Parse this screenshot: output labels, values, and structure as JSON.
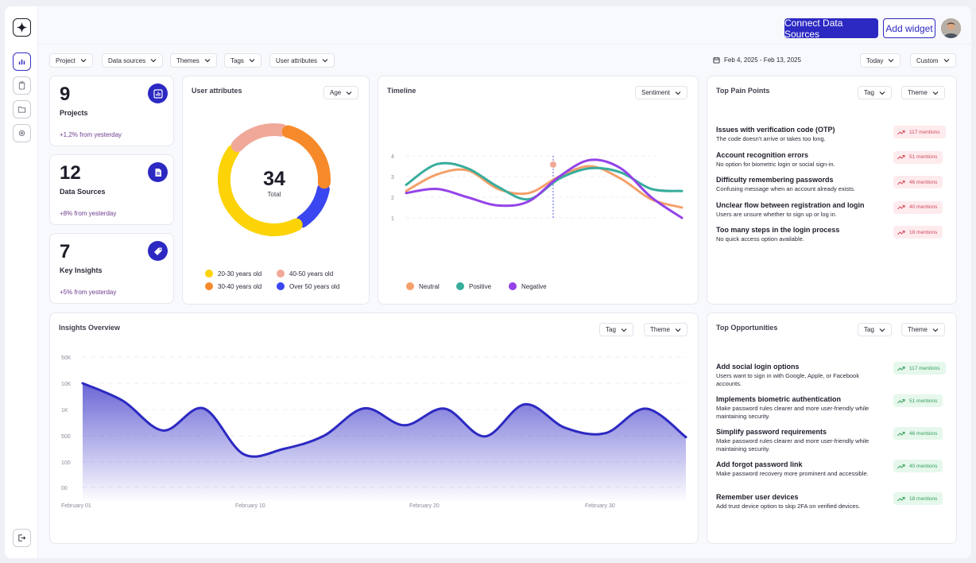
{
  "topbar": {
    "connect_label": "Connect Data Sources",
    "add_widget_label": "Add widget"
  },
  "filters": [
    {
      "label": "Project"
    },
    {
      "label": "Data sources"
    },
    {
      "label": "Themes"
    },
    {
      "label": "Tags"
    },
    {
      "label": "User attributes"
    }
  ],
  "date_range": {
    "label": "Feb 4, 2025 - Feb 13, 2025",
    "today_label": "Today",
    "custom_label": "Custom"
  },
  "stats": [
    {
      "value": "9",
      "label": "Projects",
      "change": "+1,2% from yesterday",
      "icon": "chart-icon"
    },
    {
      "value": "12",
      "label": "Data Sources",
      "change": "+8% from yesterday",
      "icon": "document-icon"
    },
    {
      "value": "7",
      "label": "Key Insights",
      "change": "+5% from yesterday",
      "icon": "tag-icon"
    }
  ],
  "user_attributes": {
    "title": "User attributes",
    "dropdown": "Age",
    "total_value": "34",
    "total_label": "Total",
    "legend": [
      {
        "label": "20-30 years old",
        "color": "#fcd307"
      },
      {
        "label": "40-50 years old",
        "color": "#f0a998"
      },
      {
        "label": "30-40 years old",
        "color": "#f68a2a"
      },
      {
        "label": "Over 50 years old",
        "color": "#3a46ef"
      }
    ]
  },
  "timeline": {
    "title": "Timeline",
    "dropdown": "Sentiment",
    "y_ticks": [
      "4",
      "3",
      "2",
      "1"
    ],
    "legend": [
      {
        "label": "Neutral",
        "color": "#f4a06a"
      },
      {
        "label": "Positive",
        "color": "#38ad9c"
      },
      {
        "label": "Negative",
        "color": "#9343e8"
      }
    ]
  },
  "pain_points": {
    "title": "Top Pain Points",
    "tag_label": "Tag",
    "theme_label": "Theme",
    "items": [
      {
        "title": "Issues with verification code (OTP)",
        "desc": "The code doesn't arrive or takes too long.",
        "mentions": "117 mentions"
      },
      {
        "title": "Account recognition errors",
        "desc": "No option for biometric login or social sign-in.",
        "mentions": "51 mentions"
      },
      {
        "title": "Difficulty remembering passwords",
        "desc": "Confusing message when an account already exists.",
        "mentions": "46 mentions"
      },
      {
        "title": "Unclear flow between registration and login",
        "desc": "Users are unsure whether to sign up or log in.",
        "mentions": "40 mentions"
      },
      {
        "title": "Too many steps in the login process",
        "desc": "No quick access option available.",
        "mentions": "18 mentions"
      }
    ]
  },
  "insights": {
    "title": "Insights Overview",
    "tag_label": "Tag",
    "theme_label": "Theme"
  },
  "opportunities": {
    "title": "Top Opportunities",
    "tag_label": "Tag",
    "theme_label": "Theme",
    "items": [
      {
        "title": "Add social login options",
        "desc": "Users want to sign in with Google, Apple, or Facebook accounts.",
        "mentions": "117 mentions"
      },
      {
        "title": "Implements biometric authentication",
        "desc": "Make password rules clearer and more user-friendly while maintaining security.",
        "mentions": "51 mentions"
      },
      {
        "title": "Simplify password requirements",
        "desc": "Make password rules clearer and more user-friendly while maintaining security.",
        "mentions": "46 mentions"
      },
      {
        "title": "Add forgot password link",
        "desc": "Make password recovery more prominent and accessible.",
        "mentions": "40 mentions"
      },
      {
        "title": "Remember user devices",
        "desc": "Add trust device option to skip 2FA on verified devices.",
        "mentions": "18 mentions"
      }
    ]
  },
  "chart_data": [
    {
      "type": "pie",
      "title": "User attributes",
      "categories": [
        "20-30 years old",
        "30-40 years old",
        "40-50 years old",
        "Over 50 years old"
      ],
      "values": [
        15,
        8,
        6,
        5
      ],
      "total": 34
    },
    {
      "type": "line",
      "title": "Timeline",
      "ylim": [
        1,
        4
      ],
      "series": [
        {
          "name": "Neutral",
          "values": [
            2.3,
            3.1,
            3.3,
            2.4,
            2.2,
            3.0,
            3.5,
            2.9,
            1.9,
            1.5
          ]
        },
        {
          "name": "Positive",
          "values": [
            2.6,
            3.6,
            3.4,
            2.5,
            1.9,
            2.9,
            3.4,
            3.2,
            2.4,
            2.3
          ]
        },
        {
          "name": "Negative",
          "values": [
            2.2,
            2.4,
            2.0,
            1.6,
            1.8,
            3.0,
            3.8,
            3.4,
            2.0,
            1.0
          ]
        }
      ]
    },
    {
      "type": "area",
      "title": "Insights Overview",
      "y_ticks": [
        "50K",
        "10K",
        "1K",
        "500",
        "100",
        "00"
      ],
      "x_ticks": [
        "February 01",
        "February 10",
        "February 20",
        "February 30"
      ],
      "series": [
        {
          "name": "",
          "values": [
            10000,
            4000,
            600,
            1400,
            220,
            300,
            500,
            1400,
            700,
            1300,
            490,
            2800,
            650,
            550,
            1300,
            480
          ]
        }
      ]
    }
  ]
}
